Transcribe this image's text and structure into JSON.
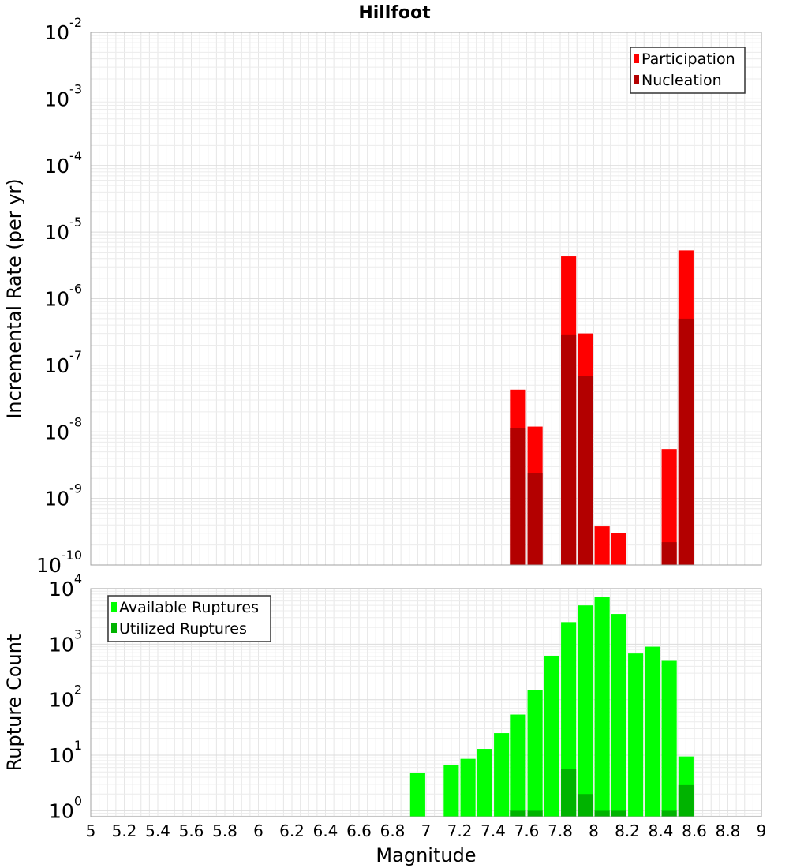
{
  "title": "Hillfoot",
  "chart_data": [
    {
      "type": "bar",
      "panel": "top",
      "ylabel": "Incremental Rate (per yr)",
      "yscale": "log",
      "ylim": [
        1e-10,
        0.01
      ],
      "xlim": [
        5,
        9
      ],
      "ytick_exponents": [
        -2,
        -3,
        -4,
        -5,
        -6,
        -7,
        -8,
        -9,
        -10
      ],
      "legend_position": "top-right",
      "grid": true,
      "bar_width": 0.09,
      "series": [
        {
          "name": "Participation",
          "color": "#ff0000",
          "x": [
            7.55,
            7.65,
            7.85,
            7.95,
            8.05,
            8.15,
            8.45,
            8.55
          ],
          "values": [
            4.3e-08,
            1.2e-08,
            4.3e-06,
            3e-07,
            3.8e-10,
            3e-10,
            5.5e-09,
            5.3e-06
          ]
        },
        {
          "name": "Nucleation",
          "color": "#b30000",
          "x": [
            7.55,
            7.65,
            7.85,
            7.95,
            8.45,
            8.55
          ],
          "values": [
            1.15e-08,
            2.4e-09,
            2.9e-07,
            6.8e-08,
            2.2e-10,
            5e-07
          ]
        }
      ]
    },
    {
      "type": "bar",
      "panel": "bottom",
      "ylabel": "Rupture Count",
      "xlabel": "Magnitude",
      "yscale": "log",
      "ylim": [
        0.78,
        10000
      ],
      "xlim": [
        5,
        9
      ],
      "ytick_exponents": [
        0,
        1,
        2,
        3,
        4
      ],
      "xticks": [
        "5",
        "5.2",
        "5.4",
        "5.6",
        "5.8",
        "6",
        "6.2",
        "6.4",
        "6.6",
        "6.8",
        "7",
        "7.2",
        "7.4",
        "7.6",
        "7.8",
        "8",
        "8.2",
        "8.4",
        "8.6",
        "8.8",
        "9"
      ],
      "legend_position": "top-left",
      "grid": true,
      "bar_width": 0.09,
      "series": [
        {
          "name": "Available Ruptures",
          "color": "#00ff00",
          "x": [
            6.95,
            7.15,
            7.25,
            7.35,
            7.45,
            7.55,
            7.65,
            7.75,
            7.85,
            7.95,
            8.05,
            8.15,
            8.25,
            8.35,
            8.45,
            8.55
          ],
          "values": [
            4.8,
            6.7,
            8.6,
            13,
            25,
            54,
            150,
            620,
            2500,
            5000,
            7000,
            3500,
            680,
            900,
            500,
            9.5
          ]
        },
        {
          "name": "Utilized Ruptures",
          "color": "#00b300",
          "x": [
            7.55,
            7.65,
            7.85,
            7.95,
            8.05,
            8.15,
            8.45,
            8.55
          ],
          "values": [
            1,
            1,
            5.6,
            2,
            1,
            1,
            1,
            2.9
          ]
        }
      ]
    }
  ]
}
